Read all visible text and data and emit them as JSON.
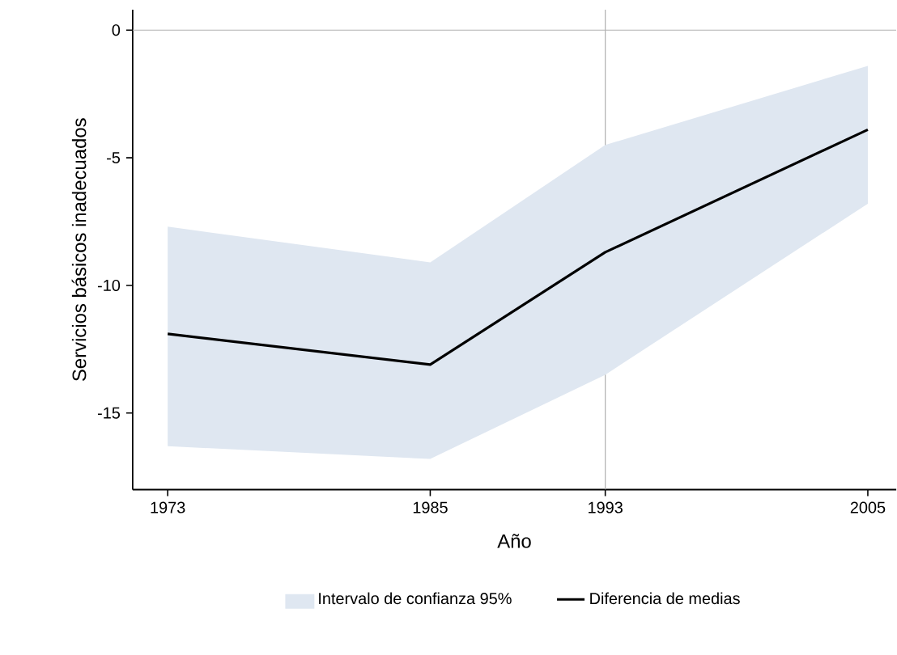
{
  "chart_data": {
    "type": "line",
    "xlabel": "Año",
    "ylabel": "Servicios básicos inadecuados",
    "x": [
      1973,
      1985,
      1993,
      2005
    ],
    "series": [
      {
        "name": "Diferencia de medias",
        "color": "#000000",
        "values": [
          -11.9,
          -13.1,
          -8.7,
          -3.9
        ],
        "lower": [
          -16.3,
          -16.8,
          -13.5,
          -6.8
        ],
        "upper": [
          -7.7,
          -9.1,
          -4.5,
          -1.4
        ]
      }
    ],
    "annotations": [
      "Intervalo de confianza 95%"
    ],
    "xlim": [
      1971.4,
      2006.3
    ],
    "ylim": [
      -18,
      0.8
    ],
    "xticks": [
      1973,
      1985,
      1993,
      2005
    ],
    "yticks": [
      -15,
      -10,
      -5,
      0
    ],
    "ref_lines": [
      {
        "axis": "y",
        "value": 0,
        "color": "#b0b0b0"
      },
      {
        "axis": "x",
        "value": 1993,
        "color": "#b0b0b0"
      }
    ],
    "grid": false,
    "legend": "bottom",
    "marker": "none",
    "line_style": "solid"
  }
}
